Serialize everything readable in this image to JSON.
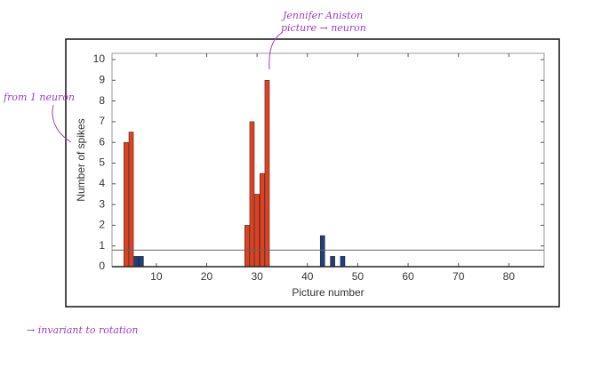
{
  "chart_data": {
    "type": "bar",
    "x_label": "Picture number",
    "y_label": "Number of spikes",
    "x": [
      4,
      5,
      6,
      7,
      28,
      29,
      30,
      31,
      32,
      43,
      45,
      47
    ],
    "values": [
      6,
      6.5,
      0.5,
      0.5,
      2,
      7,
      3.5,
      4.5,
      9,
      1.5,
      0.5,
      0.5
    ],
    "colors": [
      "#e0401f",
      "#e0401f",
      "#1f3f7a",
      "#1f3f7a",
      "#e0401f",
      "#e0401f",
      "#e0401f",
      "#e0401f",
      "#e0401f",
      "#1f3f7a",
      "#1f3f7a",
      "#1f3f7a"
    ],
    "reference_line": 0.8,
    "xlim": [
      1.2,
      87
    ],
    "ylim": [
      0,
      10.3
    ],
    "xticks": [
      10,
      20,
      30,
      40,
      50,
      60,
      70,
      80
    ],
    "yticks": [
      0,
      1,
      2,
      3,
      4,
      5,
      6,
      7,
      8,
      9,
      10
    ],
    "annotations": [
      "Jennifer Aniston",
      "picture → neuron",
      "from 1 neuron",
      "→ invariant to rotation"
    ]
  }
}
